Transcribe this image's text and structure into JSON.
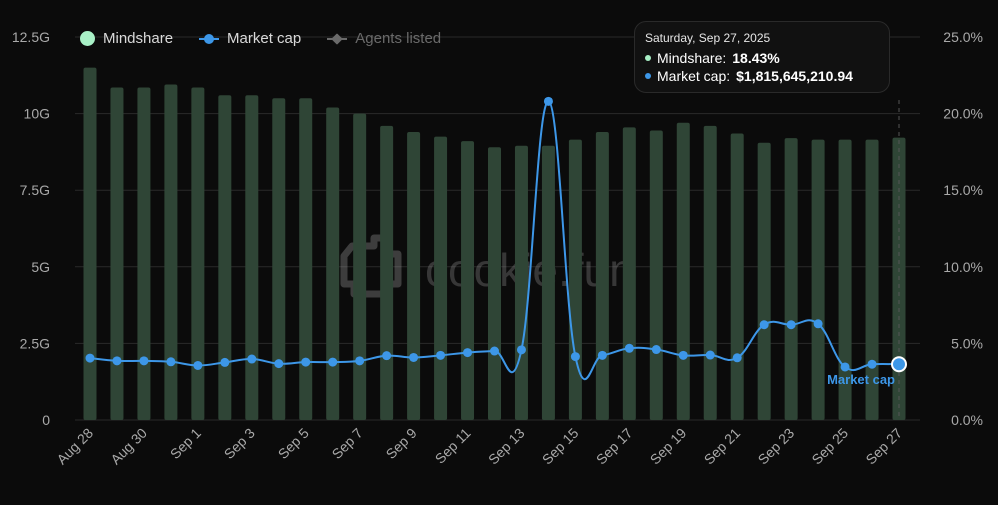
{
  "colors": {
    "background": "#0b0b0b",
    "bar": "#2f4536",
    "line": "#3d97e8",
    "mindshare": "#a8f0c6",
    "grid": "#2a2a2a",
    "axis_text": "#a9a9a9"
  },
  "legend": {
    "mindshare_label": "Mindshare",
    "market_cap_label": "Market cap",
    "agents_listed_label": "Agents listed"
  },
  "watermark": {
    "text": "cookie.fun",
    "icon": "cookie-logo-icon"
  },
  "tooltip": {
    "date": "Saturday, Sep 27, 2025",
    "mindshare_label": "Mindshare:",
    "mindshare_value": "18.43%",
    "market_cap_label": "Market cap:",
    "market_cap_value": "$1,815,645,210.94"
  },
  "endpoint_label": "Market cap",
  "chart_data": {
    "type": "bar",
    "x": [
      "Aug 28",
      "Aug 29",
      "Aug 30",
      "Aug 31",
      "Sep 1",
      "Sep 2",
      "Sep 3",
      "Sep 4",
      "Sep 5",
      "Sep 6",
      "Sep 7",
      "Sep 8",
      "Sep 9",
      "Sep 10",
      "Sep 11",
      "Sep 12",
      "Sep 13",
      "Sep 14",
      "Sep 15",
      "Sep 16",
      "Sep 17",
      "Sep 18",
      "Sep 19",
      "Sep 20",
      "Sep 21",
      "Sep 22",
      "Sep 23",
      "Sep 24",
      "Sep 25",
      "Sep 26",
      "Sep 27"
    ],
    "x_tick_labels": [
      "Aug 28",
      "Aug 30",
      "Sep 1",
      "Sep 3",
      "Sep 5",
      "Sep 7",
      "Sep 9",
      "Sep 11",
      "Sep 13",
      "Sep 15",
      "Sep 17",
      "Sep 19",
      "Sep 21",
      "Sep 23",
      "Sep 25",
      "Sep 27"
    ],
    "series": [
      {
        "name": "Mindshare",
        "type": "bar",
        "axis": "right",
        "values": [
          23.0,
          21.7,
          21.7,
          21.9,
          21.7,
          21.2,
          21.2,
          21.0,
          21.0,
          20.4,
          20.0,
          19.2,
          18.8,
          18.5,
          18.2,
          17.8,
          17.9,
          17.9,
          18.3,
          18.8,
          19.1,
          18.9,
          19.4,
          19.2,
          18.7,
          18.1,
          18.4,
          18.3,
          18.3,
          18.3,
          18.43
        ]
      },
      {
        "name": "Market cap",
        "type": "line",
        "axis": "left",
        "values": [
          2.02,
          1.93,
          1.93,
          1.9,
          1.78,
          1.88,
          1.99,
          1.84,
          1.89,
          1.89,
          1.93,
          2.1,
          2.04,
          2.11,
          2.2,
          2.25,
          2.29,
          10.4,
          2.07,
          2.11,
          2.34,
          2.3,
          2.11,
          2.12,
          2.03,
          3.11,
          3.11,
          3.14,
          1.73,
          1.82,
          1.82
        ]
      }
    ],
    "y_left": {
      "ticks": [
        "0",
        "2.5G",
        "5G",
        "7.5G",
        "10G",
        "12.5G"
      ],
      "range": [
        0,
        12.5
      ]
    },
    "y_right": {
      "ticks": [
        "0.0%",
        "5.0%",
        "10.0%",
        "15.0%",
        "20.0%",
        "25.0%"
      ],
      "range": [
        0,
        25
      ]
    },
    "grid": true,
    "legend_position": "top-left"
  }
}
